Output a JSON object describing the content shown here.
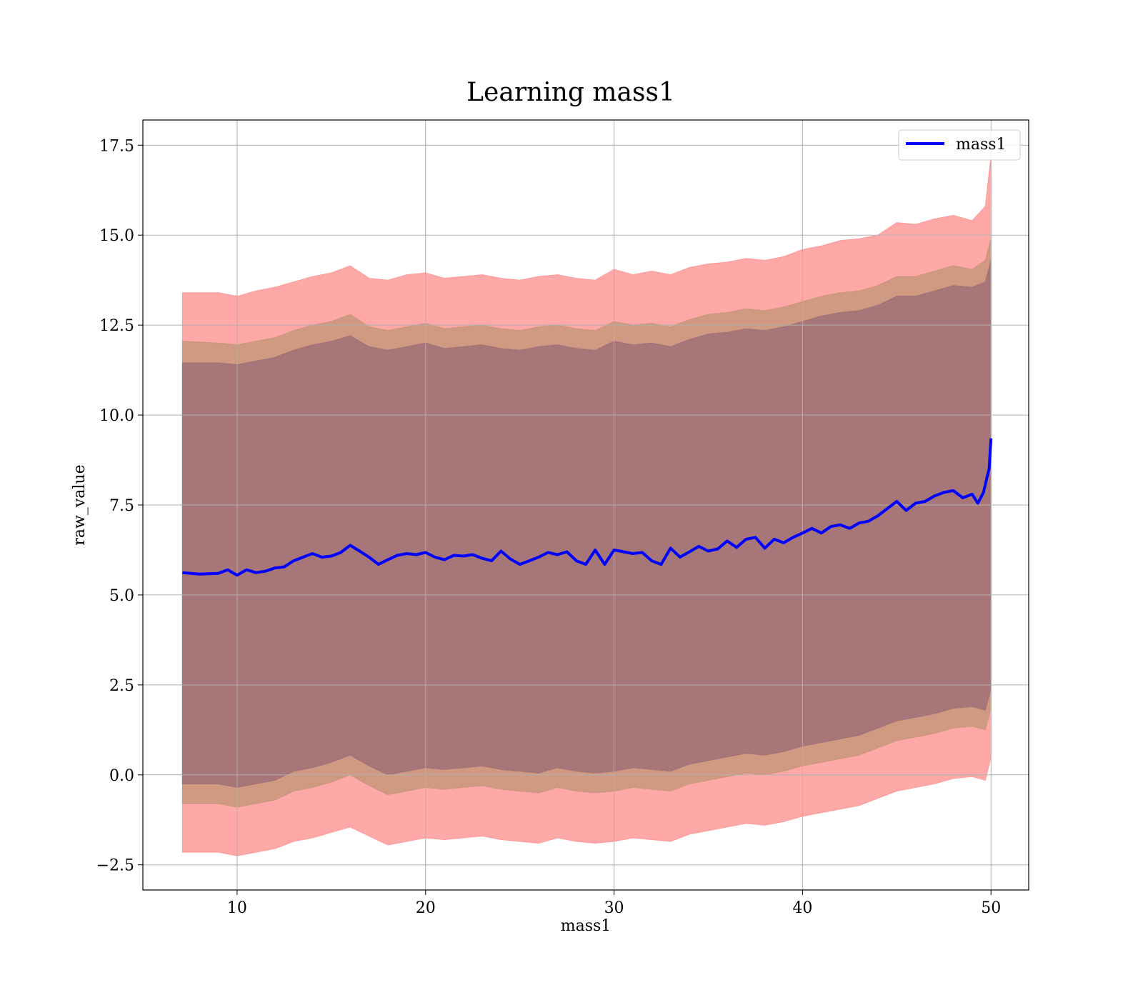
{
  "chart_data": {
    "type": "line",
    "title": "Learning mass1",
    "xlabel": "mass1",
    "ylabel": "raw_value",
    "xlim": [
      5.0,
      52.0
    ],
    "ylim": [
      -3.2,
      18.2
    ],
    "grid": true,
    "legend_position": "top-right",
    "x_ticks": [
      10,
      20,
      30,
      40,
      50
    ],
    "y_ticks": [
      -2.5,
      0.0,
      2.5,
      5.0,
      7.5,
      10.0,
      12.5,
      15.0,
      17.5
    ],
    "x_tick_labels": [
      "10",
      "20",
      "30",
      "40",
      "50"
    ],
    "y_tick_labels": [
      "−2.5",
      "0.0",
      "2.5",
      "5.0",
      "7.5",
      "10.0",
      "12.5",
      "15.0",
      "17.5"
    ],
    "series": [
      {
        "name": "mass1",
        "color": "#0000ff",
        "x": [
          7.1,
          8.0,
          9.0,
          9.5,
          10.0,
          10.5,
          11.0,
          11.5,
          12.0,
          12.5,
          13.0,
          13.5,
          14.0,
          14.5,
          15.0,
          15.5,
          16.0,
          16.5,
          17.0,
          17.5,
          18.0,
          18.5,
          19.0,
          19.5,
          20.0,
          20.5,
          21.0,
          21.5,
          22.0,
          22.5,
          23.0,
          23.5,
          24.0,
          24.5,
          25.0,
          25.5,
          26.0,
          26.5,
          27.0,
          27.5,
          28.0,
          28.5,
          29.0,
          29.5,
          30.0,
          30.5,
          31.0,
          31.5,
          32.0,
          32.5,
          33.0,
          33.5,
          34.0,
          34.5,
          35.0,
          35.5,
          36.0,
          36.5,
          37.0,
          37.5,
          38.0,
          38.5,
          39.0,
          39.5,
          40.0,
          40.5,
          41.0,
          41.5,
          42.0,
          42.5,
          43.0,
          43.5,
          44.0,
          44.5,
          45.0,
          45.5,
          46.0,
          46.5,
          47.0,
          47.5,
          48.0,
          48.5,
          49.0,
          49.3,
          49.6,
          49.8,
          49.9,
          50.0
        ],
        "y": [
          5.62,
          5.58,
          5.6,
          5.7,
          5.55,
          5.7,
          5.62,
          5.66,
          5.75,
          5.78,
          5.95,
          6.05,
          6.15,
          6.05,
          6.08,
          6.18,
          6.38,
          6.22,
          6.05,
          5.85,
          5.98,
          6.1,
          6.15,
          6.12,
          6.18,
          6.05,
          5.98,
          6.1,
          6.08,
          6.12,
          6.02,
          5.95,
          6.22,
          6.0,
          5.85,
          5.95,
          6.05,
          6.18,
          6.12,
          6.2,
          5.95,
          5.85,
          6.25,
          5.85,
          6.25,
          6.2,
          6.15,
          6.18,
          5.95,
          5.85,
          6.3,
          6.05,
          6.2,
          6.35,
          6.22,
          6.28,
          6.5,
          6.32,
          6.55,
          6.6,
          6.3,
          6.55,
          6.45,
          6.6,
          6.72,
          6.85,
          6.72,
          6.9,
          6.95,
          6.85,
          7.0,
          7.05,
          7.2,
          7.4,
          7.6,
          7.35,
          7.55,
          7.6,
          7.75,
          7.85,
          7.9,
          7.7,
          7.8,
          7.55,
          7.85,
          8.3,
          8.5,
          9.35
        ]
      }
    ],
    "bands": [
      {
        "name": "",
        "color": "#ff9999",
        "x": [
          7.1,
          9.0,
          10.0,
          11.0,
          12.0,
          13.0,
          14.0,
          15.0,
          16.0,
          17.0,
          18.0,
          19.0,
          20.0,
          21.0,
          22.0,
          23.0,
          24.0,
          25.0,
          26.0,
          27.0,
          28.0,
          29.0,
          30.0,
          31.0,
          32.0,
          33.0,
          34.0,
          35.0,
          36.0,
          37.0,
          38.0,
          39.0,
          40.0,
          41.0,
          42.0,
          43.0,
          44.0,
          45.0,
          46.0,
          47.0,
          48.0,
          49.0,
          49.7,
          50.0
        ],
        "upper": [
          13.4,
          13.4,
          13.3,
          13.45,
          13.55,
          13.7,
          13.85,
          13.95,
          14.15,
          13.8,
          13.75,
          13.9,
          13.95,
          13.8,
          13.85,
          13.9,
          13.8,
          13.75,
          13.85,
          13.9,
          13.8,
          13.75,
          14.05,
          13.9,
          14.0,
          13.9,
          14.1,
          14.2,
          14.25,
          14.35,
          14.3,
          14.4,
          14.6,
          14.7,
          14.85,
          14.9,
          15.0,
          15.35,
          15.3,
          15.45,
          15.55,
          15.4,
          15.8,
          17.2
        ],
        "lower": [
          -2.15,
          -2.15,
          -2.25,
          -2.15,
          -2.05,
          -1.85,
          -1.75,
          -1.6,
          -1.45,
          -1.7,
          -1.95,
          -1.85,
          -1.75,
          -1.8,
          -1.75,
          -1.7,
          -1.8,
          -1.85,
          -1.9,
          -1.75,
          -1.85,
          -1.9,
          -1.85,
          -1.75,
          -1.8,
          -1.85,
          -1.65,
          -1.55,
          -1.45,
          -1.35,
          -1.4,
          -1.3,
          -1.15,
          -1.05,
          -0.95,
          -0.85,
          -0.65,
          -0.45,
          -0.35,
          -0.25,
          -0.1,
          -0.05,
          -0.15,
          0.5
        ]
      },
      {
        "name": "",
        "color": "#c8967a",
        "x": [
          7.1,
          9.0,
          10.0,
          11.0,
          12.0,
          13.0,
          14.0,
          15.0,
          16.0,
          17.0,
          18.0,
          19.0,
          20.0,
          21.0,
          22.0,
          23.0,
          24.0,
          25.0,
          26.0,
          27.0,
          28.0,
          29.0,
          30.0,
          31.0,
          32.0,
          33.0,
          34.0,
          35.0,
          36.0,
          37.0,
          38.0,
          39.0,
          40.0,
          41.0,
          42.0,
          43.0,
          44.0,
          45.0,
          46.0,
          47.0,
          48.0,
          49.0,
          49.7,
          50.0
        ],
        "upper": [
          12.05,
          12.0,
          11.95,
          12.05,
          12.15,
          12.35,
          12.5,
          12.6,
          12.8,
          12.45,
          12.35,
          12.45,
          12.55,
          12.4,
          12.45,
          12.5,
          12.4,
          12.35,
          12.45,
          12.5,
          12.4,
          12.35,
          12.6,
          12.5,
          12.55,
          12.45,
          12.65,
          12.8,
          12.85,
          12.95,
          12.9,
          13.0,
          13.15,
          13.3,
          13.4,
          13.45,
          13.6,
          13.85,
          13.85,
          14.0,
          14.15,
          14.05,
          14.3,
          14.9
        ],
        "lower": [
          -0.8,
          -0.8,
          -0.9,
          -0.8,
          -0.7,
          -0.45,
          -0.35,
          -0.2,
          0.0,
          -0.3,
          -0.55,
          -0.45,
          -0.35,
          -0.4,
          -0.35,
          -0.3,
          -0.4,
          -0.45,
          -0.5,
          -0.35,
          -0.45,
          -0.5,
          -0.45,
          -0.35,
          -0.4,
          -0.45,
          -0.25,
          -0.15,
          -0.05,
          0.05,
          0.0,
          0.1,
          0.25,
          0.35,
          0.45,
          0.55,
          0.75,
          0.95,
          1.05,
          1.15,
          1.3,
          1.35,
          1.25,
          1.85
        ]
      },
      {
        "name": "",
        "color": "#a07078",
        "x": [
          7.1,
          9.0,
          10.0,
          11.0,
          12.0,
          13.0,
          14.0,
          15.0,
          16.0,
          17.0,
          18.0,
          19.0,
          20.0,
          21.0,
          22.0,
          23.0,
          24.0,
          25.0,
          26.0,
          27.0,
          28.0,
          29.0,
          30.0,
          31.0,
          32.0,
          33.0,
          34.0,
          35.0,
          36.0,
          37.0,
          38.0,
          39.0,
          40.0,
          41.0,
          42.0,
          43.0,
          44.0,
          45.0,
          46.0,
          47.0,
          48.0,
          49.0,
          49.7,
          50.0
        ],
        "upper": [
          11.45,
          11.45,
          11.4,
          11.5,
          11.6,
          11.8,
          11.95,
          12.05,
          12.2,
          11.9,
          11.8,
          11.9,
          12.0,
          11.85,
          11.9,
          11.95,
          11.85,
          11.8,
          11.9,
          11.95,
          11.85,
          11.8,
          12.05,
          11.95,
          12.0,
          11.9,
          12.1,
          12.25,
          12.3,
          12.4,
          12.35,
          12.45,
          12.6,
          12.75,
          12.85,
          12.9,
          13.05,
          13.3,
          13.3,
          13.45,
          13.6,
          13.55,
          13.7,
          14.3
        ],
        "lower": [
          -0.25,
          -0.25,
          -0.35,
          -0.25,
          -0.15,
          0.1,
          0.2,
          0.35,
          0.55,
          0.25,
          0.0,
          0.1,
          0.2,
          0.15,
          0.2,
          0.25,
          0.15,
          0.1,
          0.05,
          0.2,
          0.1,
          0.05,
          0.1,
          0.2,
          0.15,
          0.1,
          0.3,
          0.4,
          0.5,
          0.6,
          0.55,
          0.65,
          0.8,
          0.9,
          1.0,
          1.1,
          1.3,
          1.5,
          1.6,
          1.7,
          1.85,
          1.9,
          1.8,
          2.4
        ]
      }
    ]
  }
}
